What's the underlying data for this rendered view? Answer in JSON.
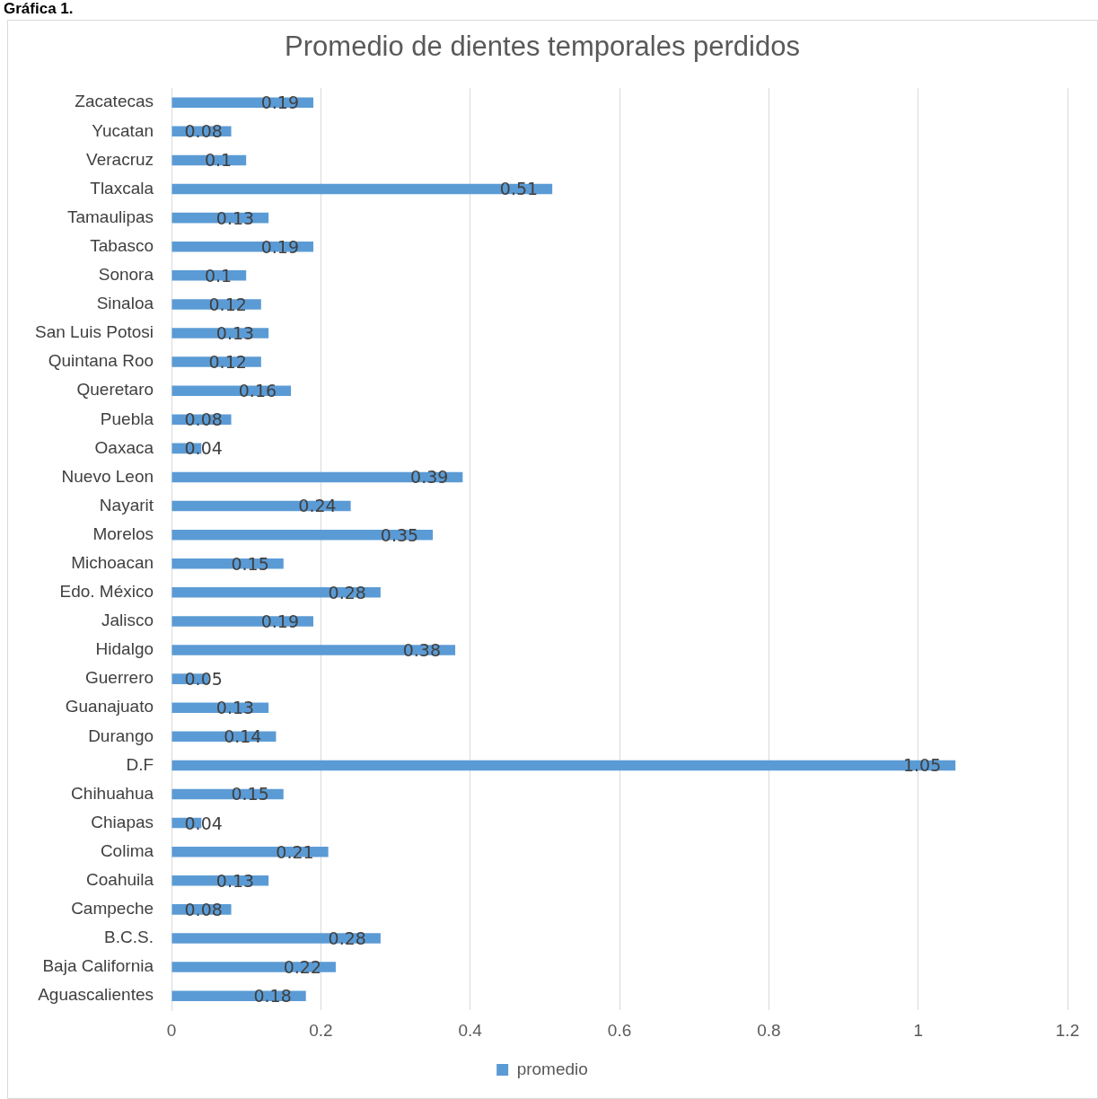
{
  "chart_data": {
    "type": "bar",
    "orientation": "horizontal",
    "title": "Promedio de dientes temporales perdidos",
    "annotations": [
      "Gráfica 1."
    ],
    "categories": [
      "Zacatecas",
      "Yucatan",
      "Veracruz",
      "Tlaxcala",
      "Tamaulipas",
      "Tabasco",
      "Sonora",
      "Sinaloa",
      "San Luis Potosi",
      "Quintana Roo",
      "Queretaro",
      "Puebla",
      "Oaxaca",
      "Nuevo Leon",
      "Nayarit",
      "Morelos",
      "Michoacan",
      "Edo. México",
      "Jalisco",
      "Hidalgo",
      "Guerrero",
      "Guanajuato",
      "Durango",
      "D.F",
      "Chihuahua",
      "Chiapas",
      "Colima",
      "Coahuila",
      "Campeche",
      "B.C.S.",
      "Baja California",
      "Aguascalientes"
    ],
    "series": [
      {
        "name": "promedio",
        "color": "#5b9bd5",
        "values": [
          0.19,
          0.08,
          0.1,
          0.51,
          0.13,
          0.19,
          0.1,
          0.12,
          0.13,
          0.12,
          0.16,
          0.08,
          0.04,
          0.39,
          0.24,
          0.35,
          0.15,
          0.28,
          0.19,
          0.38,
          0.05,
          0.13,
          0.14,
          1.05,
          0.15,
          0.04,
          0.21,
          0.13,
          0.08,
          0.28,
          0.22,
          0.18
        ]
      }
    ],
    "xlim": [
      0,
      1.2
    ],
    "xticks": [
      0,
      0.2,
      0.4,
      0.6,
      0.8,
      1,
      1.2
    ],
    "grid": "x",
    "legend": "bottom",
    "data_labels": true
  }
}
